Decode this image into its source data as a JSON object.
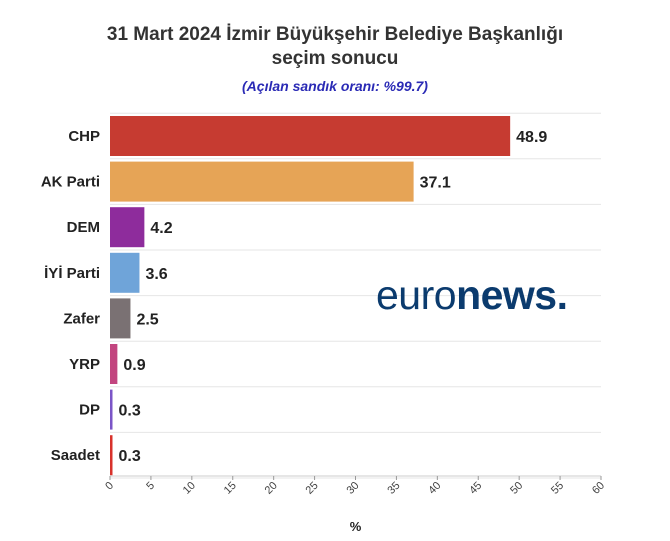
{
  "title_line1": "31 Mart 2024 İzmir Büyükşehir Belediye Başkanlığı",
  "title_line2": "seçim sonucu",
  "subtitle": "(Açılan sandık oranı: %99.7)",
  "logo": {
    "part1": "euro",
    "part2": "news",
    "dot": "."
  },
  "chart_data": {
    "type": "bar",
    "orientation": "horizontal",
    "title": "31 Mart 2024 İzmir Büyükşehir Belediye Başkanlığı seçim sonucu",
    "subtitle": "(Açılan sandık oranı: %99.7)",
    "categories": [
      "CHP",
      "AK Parti",
      "DEM",
      "İYİ Parti",
      "Zafer",
      "YRP",
      "DP",
      "Saadet"
    ],
    "values": [
      48.9,
      37.1,
      4.2,
      3.6,
      2.5,
      0.9,
      0.3,
      0.3
    ],
    "value_labels": [
      "48.9",
      "37.1",
      "4.2",
      "3.6",
      "2.5",
      "0.9",
      "0.3",
      "0.3"
    ],
    "colors": [
      "#c63b31",
      "#e6a456",
      "#8e2c9c",
      "#6fa4d9",
      "#7a7173",
      "#c2457f",
      "#7b55c7",
      "#d8322b"
    ],
    "xlabel": "%",
    "ylabel": "",
    "xlim": [
      0,
      60
    ],
    "xticks": [
      "0",
      "5",
      "10",
      "15",
      "20",
      "25",
      "30",
      "35",
      "40",
      "45",
      "50",
      "55",
      "60"
    ],
    "grid": true,
    "legend": "none"
  }
}
